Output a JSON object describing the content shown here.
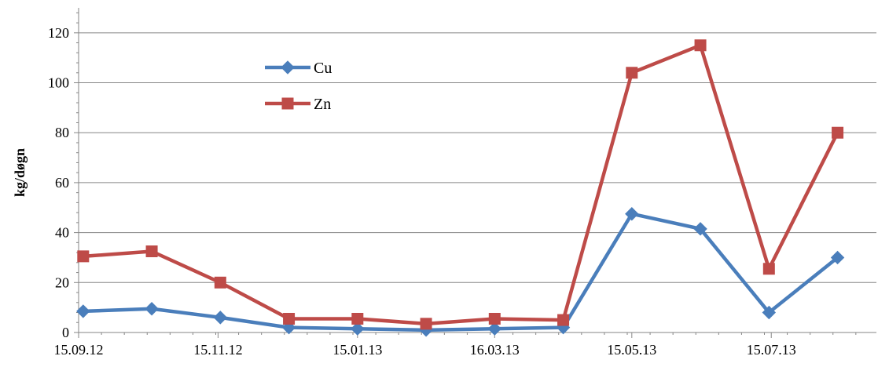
{
  "chart_data": {
    "type": "line",
    "title": "",
    "xlabel": "",
    "ylabel": "kg/døgn",
    "ylim": [
      0,
      130
    ],
    "yticks": [
      0,
      20,
      40,
      60,
      80,
      100,
      120
    ],
    "xlim": [
      "2012-09-15",
      "2013-08-30"
    ],
    "xtick_dates": [
      "2012-09-15",
      "2012-11-15",
      "2013-01-15",
      "2013-03-16",
      "2013-05-15",
      "2013-07-15"
    ],
    "xtick_labels": [
      "15.09.12",
      "15.11.12",
      "15.01.13",
      "16.03.13",
      "15.05.13",
      "15.07.13"
    ],
    "grid": "horizontal",
    "legend_position": "upper-left",
    "x": [
      "2012-09-17",
      "2012-10-17",
      "2012-11-16",
      "2012-12-16",
      "2013-01-15",
      "2013-02-14",
      "2013-03-16",
      "2013-04-15",
      "2013-05-15",
      "2013-06-14",
      "2013-07-14",
      "2013-08-13"
    ],
    "series": [
      {
        "name": "Cu",
        "color": "#4a7ebb",
        "marker": "diamond",
        "values": [
          8.5,
          9.5,
          6,
          2,
          1.5,
          1,
          1.5,
          2,
          47.5,
          41.5,
          8,
          30
        ]
      },
      {
        "name": "Zn",
        "color": "#be4b48",
        "marker": "square",
        "values": [
          30.5,
          32.5,
          20,
          5.5,
          5.5,
          3.5,
          5.5,
          5,
          104,
          115,
          25.5,
          80
        ]
      }
    ]
  }
}
